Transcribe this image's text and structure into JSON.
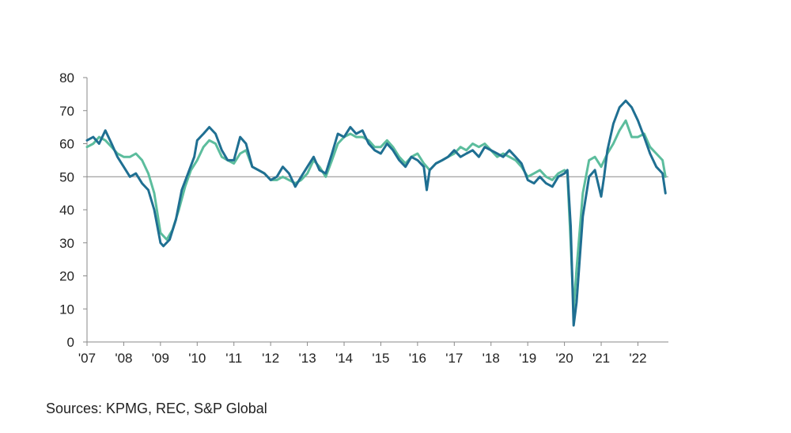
{
  "chart_data": {
    "type": "line",
    "title": "",
    "xlabel": "",
    "ylabel": "",
    "ylim": [
      0,
      80
    ],
    "xlim": [
      2007.0,
      2022.83
    ],
    "yticks": [
      0,
      10,
      20,
      30,
      40,
      50,
      60,
      70,
      80
    ],
    "xticks": [
      {
        "x": 2007,
        "label": "'07"
      },
      {
        "x": 2008,
        "label": "'08"
      },
      {
        "x": 2009,
        "label": "'09"
      },
      {
        "x": 2010,
        "label": "'10"
      },
      {
        "x": 2011,
        "label": "'11"
      },
      {
        "x": 2012,
        "label": "'12"
      },
      {
        "x": 2013,
        "label": "'13"
      },
      {
        "x": 2014,
        "label": "'14"
      },
      {
        "x": 2015,
        "label": "'15"
      },
      {
        "x": 2016,
        "label": "'16"
      },
      {
        "x": 2017,
        "label": "'17"
      },
      {
        "x": 2018,
        "label": "'18"
      },
      {
        "x": 2019,
        "label": "'19"
      },
      {
        "x": 2020,
        "label": "'20"
      },
      {
        "x": 2021,
        "label": "'21"
      },
      {
        "x": 2022,
        "label": "'22"
      }
    ],
    "reference_line": 50,
    "grid": false,
    "series": [
      {
        "color": "#1f6f92",
        "points": [
          [
            2007.0,
            61
          ],
          [
            2007.17,
            62
          ],
          [
            2007.33,
            60
          ],
          [
            2007.5,
            64
          ],
          [
            2007.67,
            60
          ],
          [
            2007.83,
            56
          ],
          [
            2008.0,
            53
          ],
          [
            2008.17,
            50
          ],
          [
            2008.33,
            51
          ],
          [
            2008.5,
            48
          ],
          [
            2008.67,
            46
          ],
          [
            2008.83,
            40
          ],
          [
            2009.0,
            30
          ],
          [
            2009.08,
            29
          ],
          [
            2009.25,
            31
          ],
          [
            2009.42,
            37
          ],
          [
            2009.58,
            46
          ],
          [
            2009.75,
            51
          ],
          [
            2009.92,
            56
          ],
          [
            2010.0,
            61
          ],
          [
            2010.17,
            63
          ],
          [
            2010.33,
            65
          ],
          [
            2010.5,
            63
          ],
          [
            2010.67,
            58
          ],
          [
            2010.83,
            55
          ],
          [
            2011.0,
            55
          ],
          [
            2011.17,
            62
          ],
          [
            2011.33,
            60
          ],
          [
            2011.5,
            53
          ],
          [
            2011.67,
            52
          ],
          [
            2011.83,
            51
          ],
          [
            2012.0,
            49
          ],
          [
            2012.17,
            50
          ],
          [
            2012.33,
            53
          ],
          [
            2012.5,
            51
          ],
          [
            2012.67,
            47
          ],
          [
            2012.83,
            50
          ],
          [
            2013.0,
            53
          ],
          [
            2013.17,
            56
          ],
          [
            2013.33,
            52
          ],
          [
            2013.5,
            51
          ],
          [
            2013.67,
            57
          ],
          [
            2013.83,
            63
          ],
          [
            2014.0,
            62
          ],
          [
            2014.17,
            65
          ],
          [
            2014.33,
            63
          ],
          [
            2014.5,
            64
          ],
          [
            2014.67,
            60
          ],
          [
            2014.83,
            58
          ],
          [
            2015.0,
            57
          ],
          [
            2015.17,
            60
          ],
          [
            2015.33,
            58
          ],
          [
            2015.5,
            55
          ],
          [
            2015.67,
            53
          ],
          [
            2015.83,
            56
          ],
          [
            2016.0,
            55
          ],
          [
            2016.17,
            53
          ],
          [
            2016.25,
            46
          ],
          [
            2016.33,
            52
          ],
          [
            2016.5,
            54
          ],
          [
            2016.67,
            55
          ],
          [
            2016.83,
            56
          ],
          [
            2017.0,
            58
          ],
          [
            2017.17,
            56
          ],
          [
            2017.33,
            57
          ],
          [
            2017.5,
            58
          ],
          [
            2017.67,
            56
          ],
          [
            2017.83,
            59
          ],
          [
            2018.0,
            58
          ],
          [
            2018.17,
            57
          ],
          [
            2018.33,
            56
          ],
          [
            2018.5,
            58
          ],
          [
            2018.67,
            56
          ],
          [
            2018.83,
            54
          ],
          [
            2019.0,
            49
          ],
          [
            2019.17,
            48
          ],
          [
            2019.33,
            50
          ],
          [
            2019.5,
            48
          ],
          [
            2019.67,
            47
          ],
          [
            2019.83,
            50
          ],
          [
            2020.0,
            51
          ],
          [
            2020.08,
            52
          ],
          [
            2020.17,
            35
          ],
          [
            2020.25,
            5
          ],
          [
            2020.33,
            12
          ],
          [
            2020.5,
            38
          ],
          [
            2020.67,
            50
          ],
          [
            2020.83,
            52
          ],
          [
            2021.0,
            44
          ],
          [
            2021.08,
            50
          ],
          [
            2021.17,
            58
          ],
          [
            2021.33,
            66
          ],
          [
            2021.5,
            71
          ],
          [
            2021.67,
            73
          ],
          [
            2021.83,
            71
          ],
          [
            2022.0,
            67
          ],
          [
            2022.17,
            62
          ],
          [
            2022.33,
            57
          ],
          [
            2022.5,
            53
          ],
          [
            2022.67,
            51
          ],
          [
            2022.75,
            45
          ]
        ]
      },
      {
        "color": "#5cbd9d",
        "points": [
          [
            2007.0,
            59
          ],
          [
            2007.17,
            60
          ],
          [
            2007.33,
            62
          ],
          [
            2007.5,
            61
          ],
          [
            2007.67,
            59
          ],
          [
            2007.83,
            57
          ],
          [
            2008.0,
            56
          ],
          [
            2008.17,
            56
          ],
          [
            2008.33,
            57
          ],
          [
            2008.5,
            55
          ],
          [
            2008.67,
            51
          ],
          [
            2008.83,
            45
          ],
          [
            2009.0,
            33
          ],
          [
            2009.17,
            31
          ],
          [
            2009.33,
            34
          ],
          [
            2009.5,
            40
          ],
          [
            2009.67,
            47
          ],
          [
            2009.83,
            52
          ],
          [
            2010.0,
            55
          ],
          [
            2010.17,
            59
          ],
          [
            2010.33,
            61
          ],
          [
            2010.5,
            60
          ],
          [
            2010.67,
            56
          ],
          [
            2010.83,
            55
          ],
          [
            2011.0,
            54
          ],
          [
            2011.17,
            57
          ],
          [
            2011.33,
            58
          ],
          [
            2011.5,
            53
          ],
          [
            2011.67,
            52
          ],
          [
            2011.83,
            51
          ],
          [
            2012.0,
            49
          ],
          [
            2012.17,
            49
          ],
          [
            2012.33,
            50
          ],
          [
            2012.5,
            49
          ],
          [
            2012.67,
            48
          ],
          [
            2012.83,
            49
          ],
          [
            2013.0,
            51
          ],
          [
            2013.17,
            55
          ],
          [
            2013.33,
            53
          ],
          [
            2013.5,
            50
          ],
          [
            2013.67,
            55
          ],
          [
            2013.83,
            60
          ],
          [
            2014.0,
            62
          ],
          [
            2014.17,
            63
          ],
          [
            2014.33,
            62
          ],
          [
            2014.5,
            62
          ],
          [
            2014.67,
            61
          ],
          [
            2014.83,
            59
          ],
          [
            2015.0,
            59
          ],
          [
            2015.17,
            61
          ],
          [
            2015.33,
            59
          ],
          [
            2015.5,
            56
          ],
          [
            2015.67,
            54
          ],
          [
            2015.83,
            56
          ],
          [
            2016.0,
            57
          ],
          [
            2016.17,
            54
          ],
          [
            2016.33,
            52
          ],
          [
            2016.5,
            54
          ],
          [
            2016.67,
            55
          ],
          [
            2016.83,
            56
          ],
          [
            2017.0,
            57
          ],
          [
            2017.17,
            59
          ],
          [
            2017.33,
            58
          ],
          [
            2017.5,
            60
          ],
          [
            2017.67,
            59
          ],
          [
            2017.83,
            60
          ],
          [
            2018.0,
            58
          ],
          [
            2018.17,
            56
          ],
          [
            2018.33,
            57
          ],
          [
            2018.5,
            56
          ],
          [
            2018.67,
            55
          ],
          [
            2018.83,
            53
          ],
          [
            2019.0,
            50
          ],
          [
            2019.17,
            51
          ],
          [
            2019.33,
            52
          ],
          [
            2019.5,
            50
          ],
          [
            2019.67,
            49
          ],
          [
            2019.83,
            51
          ],
          [
            2020.0,
            52
          ],
          [
            2020.08,
            51
          ],
          [
            2020.17,
            30
          ],
          [
            2020.25,
            10
          ],
          [
            2020.33,
            22
          ],
          [
            2020.5,
            45
          ],
          [
            2020.67,
            55
          ],
          [
            2020.83,
            56
          ],
          [
            2021.0,
            53
          ],
          [
            2021.17,
            57
          ],
          [
            2021.33,
            60
          ],
          [
            2021.5,
            64
          ],
          [
            2021.67,
            67
          ],
          [
            2021.83,
            62
          ],
          [
            2022.0,
            62
          ],
          [
            2022.17,
            63
          ],
          [
            2022.33,
            59
          ],
          [
            2022.5,
            57
          ],
          [
            2022.67,
            55
          ],
          [
            2022.75,
            50
          ]
        ]
      }
    ]
  },
  "source_note": "Sources: KPMG, REC, S&P Global"
}
